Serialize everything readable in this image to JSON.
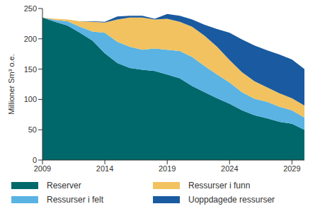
{
  "chart_data": {
    "type": "area",
    "stacked": true,
    "legend": "bottom",
    "grid": false,
    "y_label": "Millioner Sm³ o.e.",
    "x": [
      2009,
      2010,
      2011,
      2012,
      2013,
      2014,
      2015,
      2016,
      2017,
      2018,
      2019,
      2020,
      2021,
      2022,
      2023,
      2024,
      2025,
      2026,
      2027,
      2028,
      2029,
      2030
    ],
    "xlim": [
      2009,
      2030
    ],
    "xticks": [
      2009,
      2014,
      2019,
      2024,
      2029
    ],
    "ylim": [
      0,
      250
    ],
    "yticks": [
      0,
      50,
      100,
      150,
      200,
      250
    ],
    "series": [
      {
        "name": "Reserver",
        "color": "#00686b",
        "values": [
          235,
          228,
          222,
          210,
          197,
          176,
          160,
          152,
          149,
          147,
          141,
          135,
          122,
          112,
          102,
          93,
          82,
          74,
          69,
          63,
          60,
          50
        ]
      },
      {
        "name": "Ressurser i felt",
        "color": "#5ab3e3",
        "values": [
          0,
          3,
          7,
          10,
          15,
          34,
          35,
          35,
          33,
          37,
          41,
          45,
          48,
          43,
          39,
          35,
          30,
          27,
          27,
          25,
          22,
          20
        ]
      },
      {
        "name": "Ressurser i funn",
        "color": "#f2c260",
        "values": [
          0,
          2,
          3,
          9,
          16,
          17,
          37,
          48,
          53,
          48,
          51,
          48,
          50,
          50,
          46,
          37,
          33,
          29,
          24,
          22,
          20,
          20
        ]
      },
      {
        "name": "Uoppdagede ressurser",
        "color": "#1a5aa0",
        "values": [
          0,
          0,
          0,
          0,
          1,
          1,
          5,
          3,
          3,
          1,
          8,
          10,
          12,
          18,
          29,
          45,
          54,
          59,
          61,
          64,
          64,
          60
        ]
      }
    ]
  }
}
